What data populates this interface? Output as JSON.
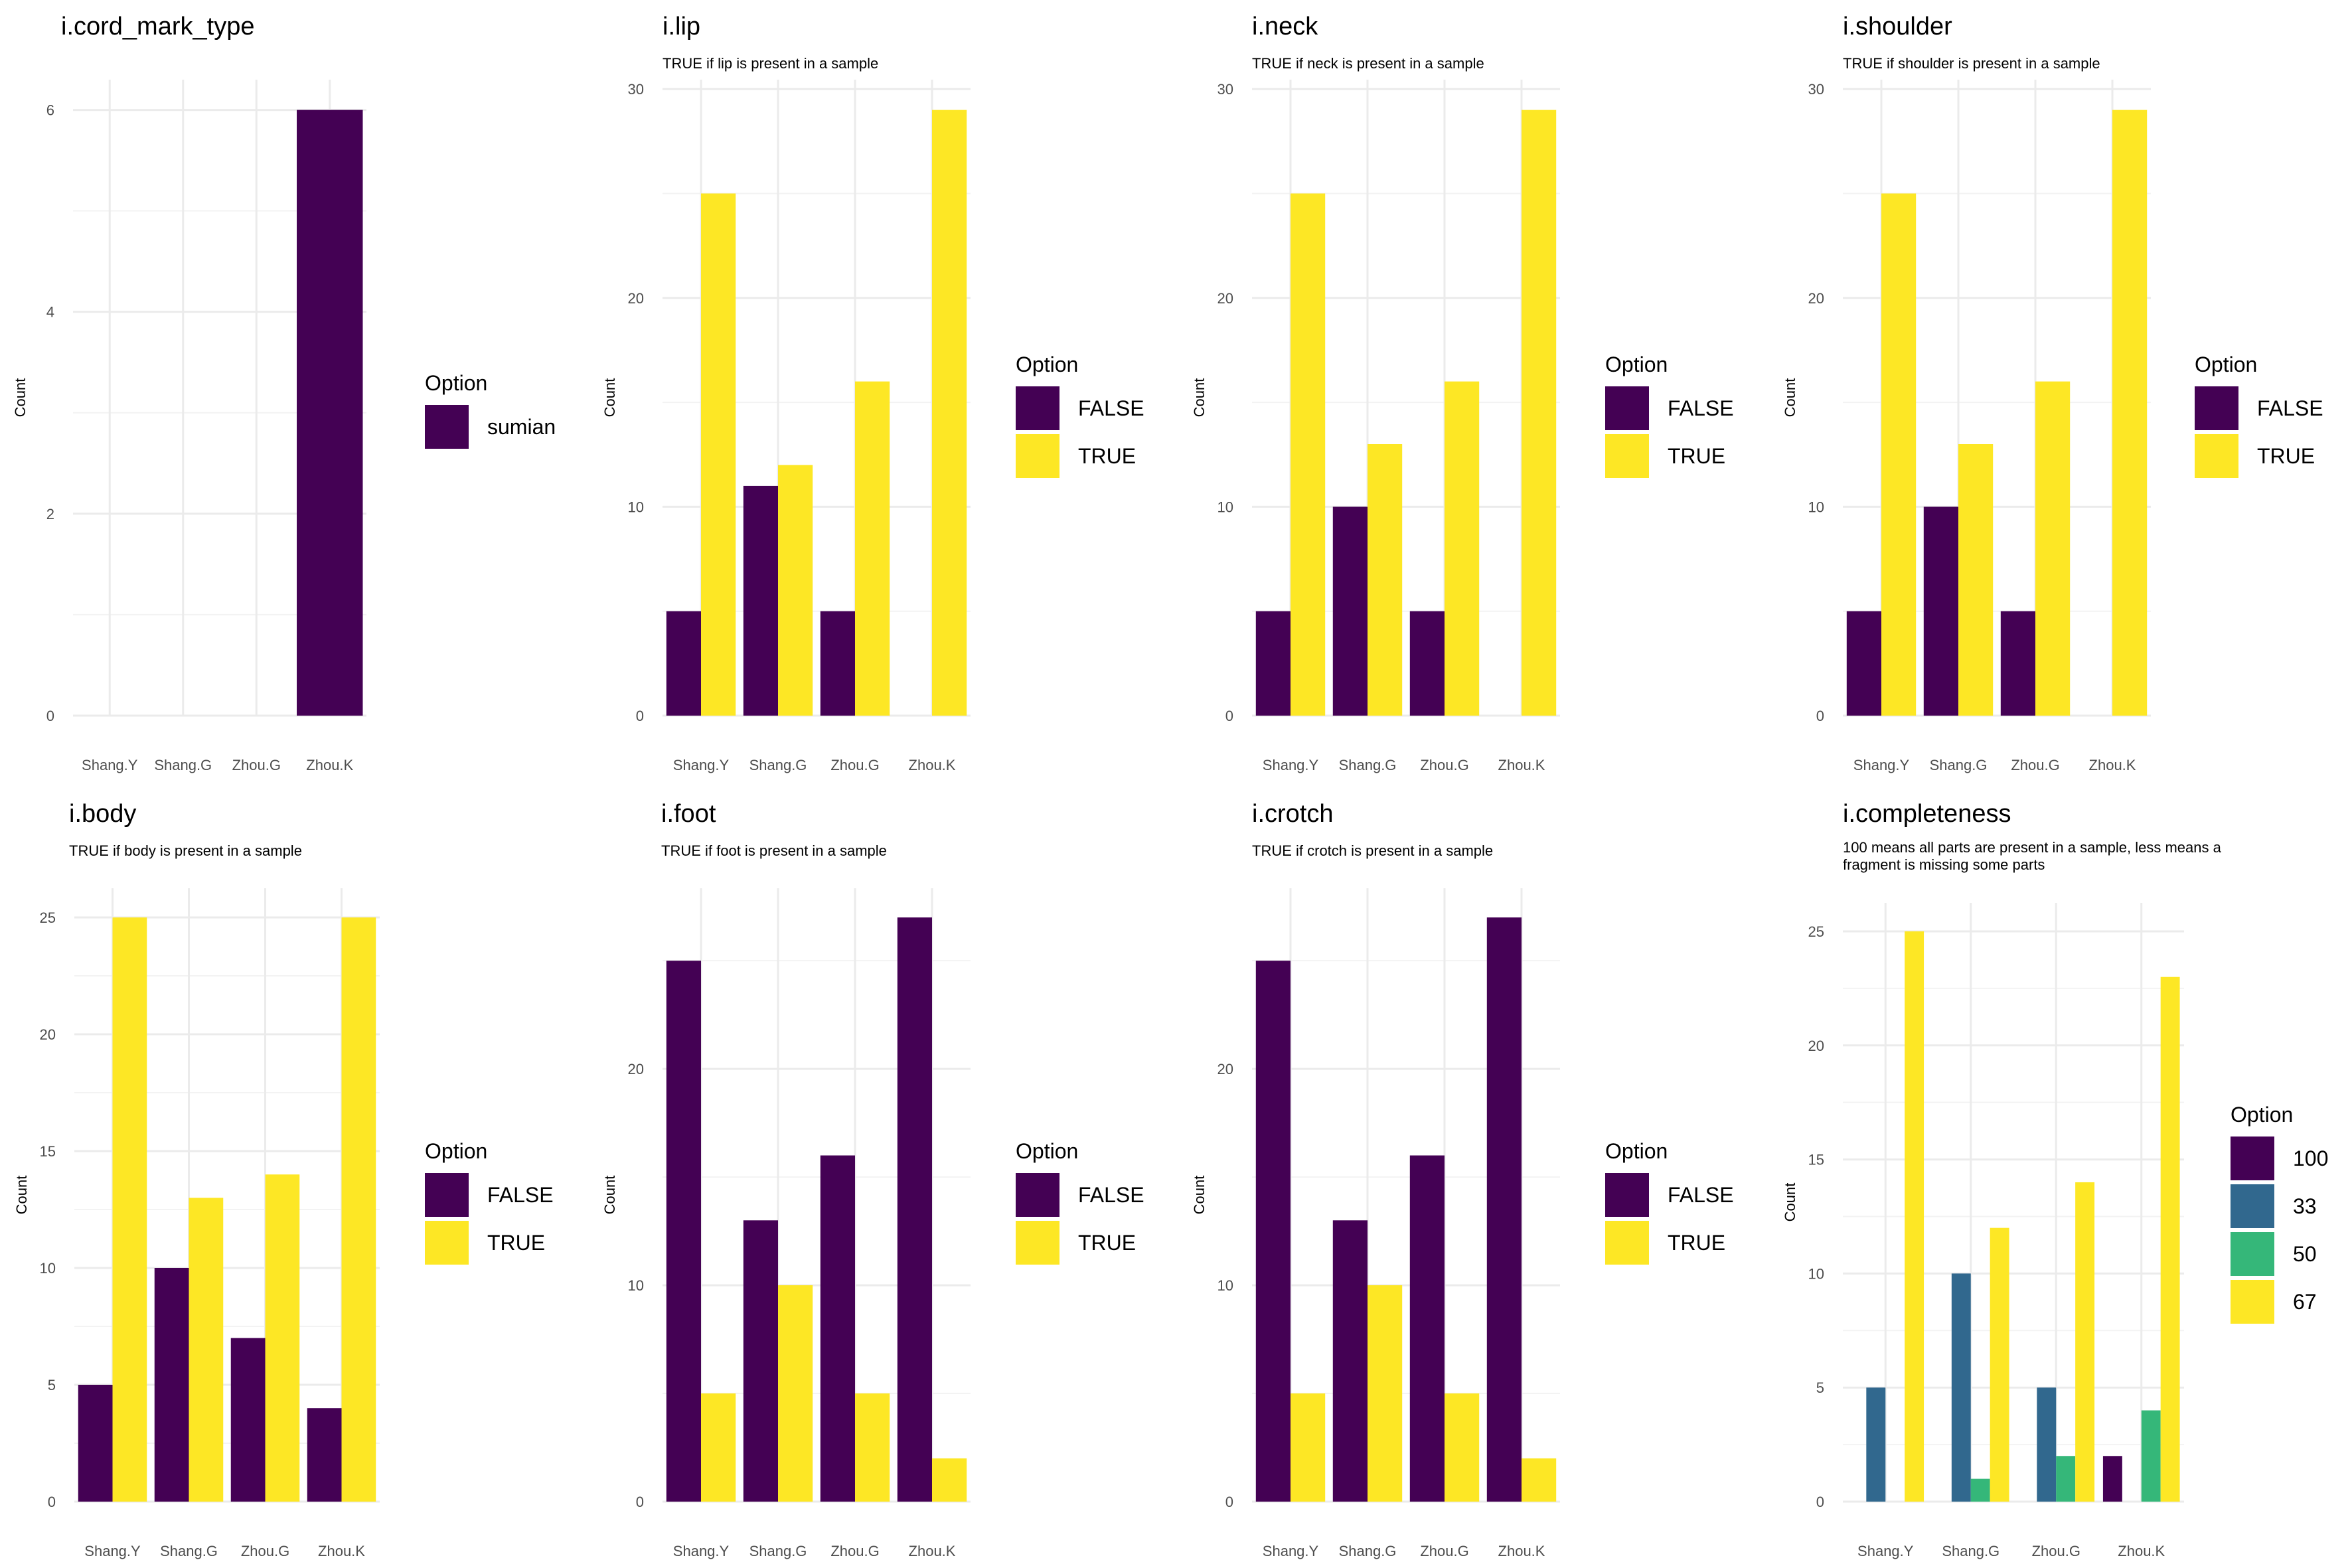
{
  "colors": {
    "false": "#440154",
    "true": "#FDE725",
    "completeness": {
      "100": "#440154",
      "33": "#31688E",
      "50": "#35B779",
      "67": "#FDE725"
    },
    "grid": "#EBEBEB"
  },
  "chart_data": [
    {
      "type": "bar",
      "title": "i.cord_mark_type",
      "subtitle": "",
      "xlabel": "",
      "ylabel": "Count",
      "categories": [
        "Shang.Y",
        "Shang.G",
        "Zhou.G",
        "Zhou.K"
      ],
      "ylim": [
        0,
        6.3
      ],
      "yticks": [
        0,
        2,
        4,
        6
      ],
      "legend_title": "Option",
      "legend_position": "right",
      "series": [
        {
          "name": "sumian",
          "color": "#440154",
          "values": [
            0,
            0,
            0,
            6
          ]
        }
      ],
      "grid": true
    },
    {
      "type": "bar",
      "title": "i.lip",
      "subtitle": "TRUE if lip is present in a sample",
      "xlabel": "",
      "ylabel": "Count",
      "categories": [
        "Shang.Y",
        "Shang.G",
        "Zhou.G",
        "Zhou.K"
      ],
      "ylim": [
        0,
        30.45
      ],
      "yticks": [
        0,
        10,
        20,
        30
      ],
      "legend_title": "Option",
      "legend_position": "right",
      "series": [
        {
          "name": "FALSE",
          "color": "#440154",
          "values": [
            5,
            11,
            5,
            0
          ]
        },
        {
          "name": "TRUE",
          "color": "#FDE725",
          "values": [
            25,
            12,
            16,
            29
          ]
        }
      ],
      "grid": true
    },
    {
      "type": "bar",
      "title": "i.neck",
      "subtitle": "TRUE if neck is present in a sample",
      "xlabel": "",
      "ylabel": "Count",
      "categories": [
        "Shang.Y",
        "Shang.G",
        "Zhou.G",
        "Zhou.K"
      ],
      "ylim": [
        0,
        30.45
      ],
      "yticks": [
        0,
        10,
        20,
        30
      ],
      "legend_title": "Option",
      "legend_position": "right",
      "series": [
        {
          "name": "FALSE",
          "color": "#440154",
          "values": [
            5,
            10,
            5,
            0
          ]
        },
        {
          "name": "TRUE",
          "color": "#FDE725",
          "values": [
            25,
            13,
            16,
            29
          ]
        }
      ],
      "grid": true
    },
    {
      "type": "bar",
      "title": "i.shoulder",
      "subtitle": "TRUE if shoulder is present in a sample",
      "xlabel": "",
      "ylabel": "Count",
      "categories": [
        "Shang.Y",
        "Shang.G",
        "Zhou.G",
        "Zhou.K"
      ],
      "ylim": [
        0,
        30.45
      ],
      "yticks": [
        0,
        10,
        20,
        30
      ],
      "legend_title": "Option",
      "legend_position": "right",
      "series": [
        {
          "name": "FALSE",
          "color": "#440154",
          "values": [
            5,
            10,
            5,
            0
          ]
        },
        {
          "name": "TRUE",
          "color": "#FDE725",
          "values": [
            25,
            13,
            16,
            29
          ]
        }
      ],
      "grid": true
    },
    {
      "type": "bar",
      "title": "i.body",
      "subtitle": "TRUE if body is present in a sample",
      "xlabel": "",
      "ylabel": "Count",
      "categories": [
        "Shang.Y",
        "Shang.G",
        "Zhou.G",
        "Zhou.K"
      ],
      "ylim": [
        0,
        26.25
      ],
      "yticks": [
        0,
        5,
        10,
        15,
        20,
        25
      ],
      "legend_title": "Option",
      "legend_position": "right",
      "series": [
        {
          "name": "FALSE",
          "color": "#440154",
          "values": [
            5,
            10,
            7,
            4
          ]
        },
        {
          "name": "TRUE",
          "color": "#FDE725",
          "values": [
            25,
            13,
            14,
            25
          ]
        }
      ],
      "grid": true
    },
    {
      "type": "bar",
      "title": "i.foot",
      "subtitle": "TRUE if foot is present in a sample",
      "xlabel": "",
      "ylabel": "Count",
      "categories": [
        "Shang.Y",
        "Shang.G",
        "Zhou.G",
        "Zhou.K"
      ],
      "ylim": [
        0,
        28.35
      ],
      "yticks": [
        0,
        10,
        20
      ],
      "legend_title": "Option",
      "legend_position": "right",
      "series": [
        {
          "name": "FALSE",
          "color": "#440154",
          "values": [
            25,
            13,
            16,
            27
          ]
        },
        {
          "name": "TRUE",
          "color": "#FDE725",
          "values": [
            5,
            10,
            5,
            2
          ]
        }
      ],
      "grid": true
    },
    {
      "type": "bar",
      "title": "i.crotch",
      "subtitle": "TRUE if crotch is present in a sample",
      "xlabel": "",
      "ylabel": "Count",
      "categories": [
        "Shang.Y",
        "Shang.G",
        "Zhou.G",
        "Zhou.K"
      ],
      "ylim": [
        0,
        28.35
      ],
      "yticks": [
        0,
        10,
        20
      ],
      "legend_title": "Option",
      "legend_position": "right",
      "series": [
        {
          "name": "FALSE",
          "color": "#440154",
          "values": [
            25,
            13,
            16,
            27
          ]
        },
        {
          "name": "TRUE",
          "color": "#FDE725",
          "values": [
            5,
            10,
            5,
            2
          ]
        }
      ],
      "grid": true
    },
    {
      "type": "bar",
      "title": "i.completeness",
      "subtitle": "100 means all parts are present in a sample, less means a fragment is missing some parts",
      "subtitle_lines": [
        "100 means all parts are present in a sample, less means a",
        "fragment is missing some parts"
      ],
      "xlabel": "",
      "ylabel": "Count",
      "categories": [
        "Shang.Y",
        "Shang.G",
        "Zhou.G",
        "Zhou.K"
      ],
      "ylim": [
        0,
        26.25
      ],
      "yticks": [
        0,
        5,
        10,
        15,
        20,
        25
      ],
      "legend_title": "Option",
      "legend_position": "right",
      "series": [
        {
          "name": "100",
          "color": "#440154",
          "values": [
            0,
            0,
            0,
            2
          ]
        },
        {
          "name": "33",
          "color": "#31688E",
          "values": [
            5,
            10,
            5,
            0
          ]
        },
        {
          "name": "50",
          "color": "#35B779",
          "values": [
            0,
            1,
            2,
            4
          ]
        },
        {
          "name": "67",
          "color": "#FDE725",
          "values": [
            25,
            12,
            14,
            23
          ]
        }
      ],
      "grid": true
    }
  ]
}
